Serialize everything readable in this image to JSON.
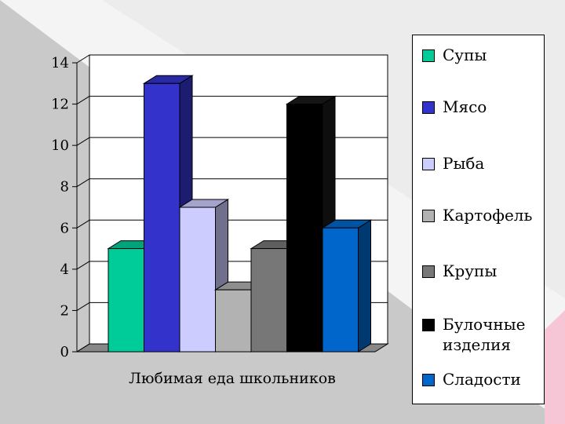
{
  "chart_data": {
    "type": "bar",
    "title": "",
    "xlabel": "Любимая еда школьников",
    "ylabel": "",
    "ylim": [
      0,
      14
    ],
    "yticks": [
      "0",
      "2",
      "4",
      "6",
      "8",
      "10",
      "12",
      "14"
    ],
    "categories": [
      "Любимая еда школьников"
    ],
    "series": [
      {
        "name": "Супы",
        "values": [
          5
        ],
        "color": "#00cc99"
      },
      {
        "name": "Мясо",
        "values": [
          13
        ],
        "color": "#3333cc"
      },
      {
        "name": "Рыба",
        "values": [
          7
        ],
        "color": "#ccccff"
      },
      {
        "name": "Картофель",
        "values": [
          3
        ],
        "color": "#b2b2b2"
      },
      {
        "name": "Крупы",
        "values": [
          5
        ],
        "color": "#777777"
      },
      {
        "name": "Булочные изделия",
        "values": [
          12
        ],
        "color": "#000000"
      },
      {
        "name": "Сладости",
        "values": [
          6
        ],
        "color": "#0066cc"
      }
    ],
    "grid": true,
    "legend_position": "right",
    "style": "3d"
  },
  "legend": {
    "items": [
      {
        "label": "Супы",
        "color": "#00cc99"
      },
      {
        "label": "Мясо",
        "color": "#3333cc"
      },
      {
        "label": "Рыба",
        "color": "#ccccff"
      },
      {
        "label": "Картофель",
        "color": "#b2b2b2"
      },
      {
        "label": "Крупы",
        "color": "#777777"
      },
      {
        "label": "Булочные изделия",
        "color": "#000000"
      },
      {
        "label": "Сладости",
        "color": "#0066cc"
      }
    ]
  },
  "background": {
    "light": "#f2f2f2",
    "gray": "#c9c9c9",
    "pink": "#f7c6d6"
  }
}
